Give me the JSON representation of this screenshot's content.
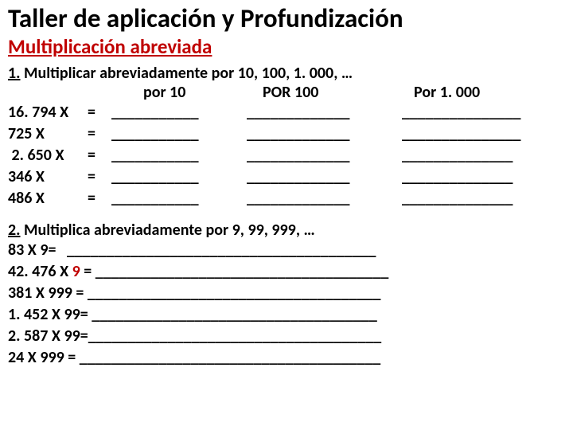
{
  "title": "Taller de aplicación y Profundización",
  "subtitle": "Multiplicación abreviada",
  "section1": {
    "heading_num": "1.",
    "heading_rest": " Multiplicar abreviadamente por 10, 100, 1. 000, …",
    "col_por10": "por 10",
    "col_por100": "POR 100",
    "col_por1000": "Por 1. 000",
    "rows": [
      {
        "op": "16. 794 X",
        "eq": "=",
        "b1": "___________",
        "b2": "_____________",
        "b3": "_______________"
      },
      {
        "op": "725 X",
        "eq": "=",
        "b1": "___________",
        "b2": "_____________",
        "b3": "_______________"
      },
      {
        "op": " 2. 650 X",
        "eq": "=",
        "b1": "___________",
        "b2": "_____________",
        "b3": "______________"
      },
      {
        "op": "346 X",
        "eq": "=",
        "b1": "___________",
        "b2": "_____________",
        "b3": "______________"
      },
      {
        "op": "486 X",
        "eq": "=",
        "b1": "___________",
        "b2": "_____________",
        "b3": "______________"
      }
    ]
  },
  "section2": {
    "heading_num": "2.",
    "heading_rest": " Multiplica abreviadamente por 9, 99, 999, …",
    "lines": [
      {
        "pre": "83 X 9=   ",
        "red": "",
        "post": "_______________________________________"
      },
      {
        "pre": "42. 476 X ",
        "red": "9",
        "post": " = _____________________________________"
      },
      {
        "pre": "381 X 999 = ",
        "red": "",
        "post": "_____________________________________"
      },
      {
        "pre": "1. 452 X 99= ",
        "red": "",
        "post": "____________________________________"
      },
      {
        "pre": "2. 587 X 99=",
        "red": "",
        "post": "_____________________________________"
      },
      {
        "pre": "24 X 999 = ",
        "red": "",
        "post": "______________________________________"
      }
    ]
  }
}
